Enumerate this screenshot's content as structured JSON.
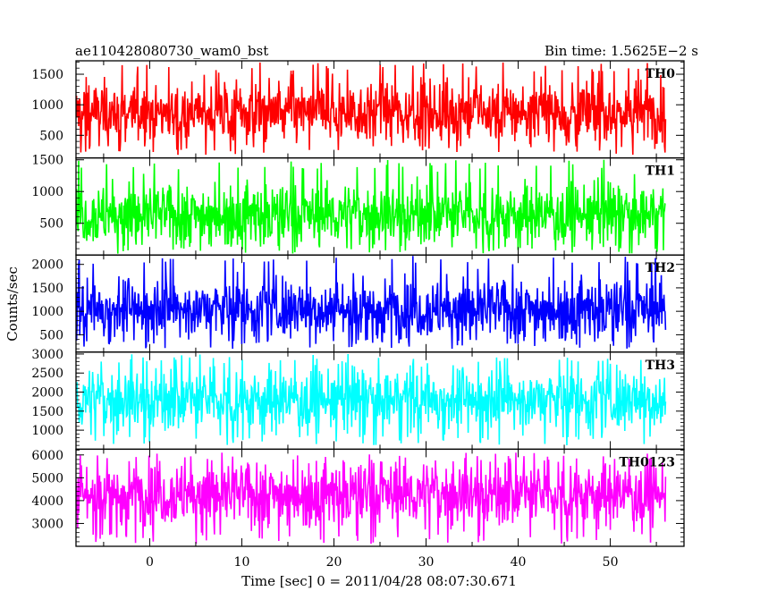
{
  "header": {
    "title": "ae110428080730_wam0_bst",
    "bin_time": "Bin time: 1.5625E−2 s"
  },
  "chart_data": {
    "type": "line",
    "xlabel": "Time [sec] 0 = 2011/04/28 08:07:30.671",
    "ylabel": "Counts/sec",
    "xlim": [
      -8,
      58
    ],
    "x_data_range": [
      -8,
      56
    ],
    "x_ticks": [
      0,
      10,
      20,
      30,
      40,
      50
    ],
    "x_tick_labels": [
      "0",
      "10",
      "20",
      "30",
      "40",
      "50"
    ],
    "grid": false,
    "panels": [
      {
        "name": "TH0",
        "color": "#ff0000",
        "ylim": [
          130,
          1720
        ],
        "y_ticks": [
          500,
          1000,
          1500
        ],
        "y_tick_labels": [
          "500",
          "1000",
          "1500"
        ],
        "signal": {
          "mean": 880,
          "typical_low": 500,
          "typical_high": 1300,
          "min": 180,
          "max": 1700
        }
      },
      {
        "name": "TH1",
        "color": "#00ff00",
        "ylim": [
          0,
          1530
        ],
        "y_ticks": [
          500,
          1000,
          1500
        ],
        "y_tick_labels": [
          "500",
          "1000",
          "1500"
        ],
        "signal": {
          "mean": 640,
          "typical_low": 300,
          "typical_high": 1050,
          "min": 20,
          "max": 1500
        }
      },
      {
        "name": "TH2",
        "color": "#0000ff",
        "ylim": [
          130,
          2200
        ],
        "y_ticks": [
          500,
          1000,
          1500,
          2000
        ],
        "y_tick_labels": [
          "500",
          "1000",
          "1500",
          "2000"
        ],
        "signal": {
          "mean": 1050,
          "typical_low": 600,
          "typical_high": 1600,
          "min": 200,
          "max": 2200
        }
      },
      {
        "name": "TH3",
        "color": "#00ffff",
        "ylim": [
          500,
          3050
        ],
        "y_ticks": [
          1000,
          1500,
          2000,
          2500,
          3000
        ],
        "y_tick_labels": [
          "1000",
          "1500",
          "2000",
          "2500",
          "3000"
        ],
        "signal": {
          "mean": 1800,
          "typical_low": 1200,
          "typical_high": 2500,
          "min": 600,
          "max": 3000
        }
      },
      {
        "name": "TH0123",
        "color": "#ff00ff",
        "ylim": [
          2000,
          6250
        ],
        "y_ticks": [
          3000,
          4000,
          5000,
          6000
        ],
        "y_tick_labels": [
          "3000",
          "4000",
          "5000",
          "6000"
        ],
        "signal": {
          "mean": 4300,
          "typical_low": 3200,
          "typical_high": 5400,
          "min": 2100,
          "max": 6100
        }
      }
    ]
  }
}
